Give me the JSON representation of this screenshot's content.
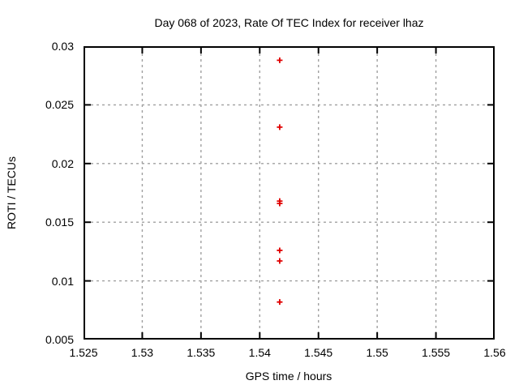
{
  "page": {
    "background_color": "#ffffff"
  },
  "chart_data": {
    "type": "scatter",
    "title": "Day 068 of 2023, Rate Of TEC Index for receiver lhaz",
    "xlabel": "GPS time / hours",
    "ylabel": "ROTI / TECUs",
    "xlim": [
      1.525,
      1.56
    ],
    "ylim": [
      0.005,
      0.03
    ],
    "xticks": [
      1.525,
      1.53,
      1.535,
      1.54,
      1.545,
      1.55,
      1.555,
      1.56
    ],
    "xtick_labels": [
      "1.525",
      "1.53",
      "1.535",
      "1.54",
      "1.545",
      "1.55",
      "1.555",
      "1.56"
    ],
    "yticks": [
      0.005,
      0.01,
      0.015,
      0.02,
      0.025,
      0.03
    ],
    "ytick_labels": [
      "0.005",
      "0.01",
      "0.015",
      "0.02",
      "0.025",
      "0.03"
    ],
    "grid": true,
    "legend_position": "none",
    "marker": "plus",
    "marker_color": "#e00000",
    "grid_color": "#a0a0a0",
    "axis_color": "#000000",
    "series": [
      {
        "name": "ROTI",
        "x": [
          1.5417,
          1.5417,
          1.5417,
          1.5417,
          1.5417,
          1.5417,
          1.5417
        ],
        "y": [
          0.0288,
          0.0231,
          0.0168,
          0.0166,
          0.0126,
          0.0117,
          0.0082
        ]
      }
    ]
  }
}
